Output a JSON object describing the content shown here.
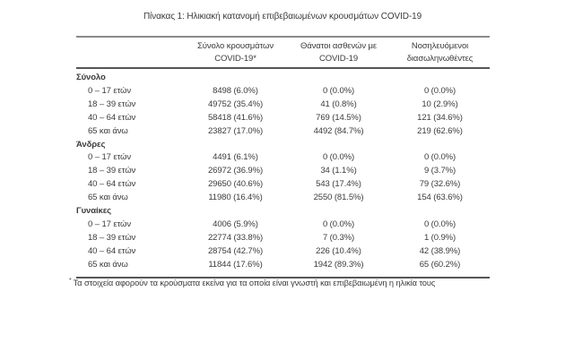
{
  "title": "Πίνακας 1: Ηλικιακή κατανομή επιβεβαιωμένων κρουσμάτων COVID-19",
  "table": {
    "header": {
      "cases": {
        "line1": "Σύνολο κρουσμάτων",
        "line2": "COVID-19*"
      },
      "deaths": {
        "line1": "Θάνατοι ασθενών με",
        "line2": "COVID-19"
      },
      "intubated": {
        "line1": "Νοσηλευόμενοι",
        "line2": "διασωληνωθέντες"
      }
    },
    "sections": [
      {
        "label": "Σύνολο",
        "rows": [
          {
            "label": "0 – 17 ετών",
            "cases": "8498 (6.0%)",
            "deaths": "0 (0.0%)",
            "intubated": "0 (0.0%)"
          },
          {
            "label": "18 – 39 ετών",
            "cases": "49752 (35.4%)",
            "deaths": "41 (0.8%)",
            "intubated": "10 (2.9%)"
          },
          {
            "label": "40 – 64 ετών",
            "cases": "58418 (41.6%)",
            "deaths": "769 (14.5%)",
            "intubated": "121 (34.6%)"
          },
          {
            "label": "65 και άνω",
            "cases": "23827 (17.0%)",
            "deaths": "4492 (84.7%)",
            "intubated": "219 (62.6%)"
          }
        ]
      },
      {
        "label": "Άνδρες",
        "rows": [
          {
            "label": "0 – 17 ετών",
            "cases": "4491 (6.1%)",
            "deaths": "0 (0.0%)",
            "intubated": "0 (0.0%)"
          },
          {
            "label": "18 – 39 ετών",
            "cases": "26972 (36.9%)",
            "deaths": "34 (1.1%)",
            "intubated": "9 (3.7%)"
          },
          {
            "label": "40 – 64 ετών",
            "cases": "29650 (40.6%)",
            "deaths": "543 (17.4%)",
            "intubated": "79 (32.6%)"
          },
          {
            "label": "65 και άνω",
            "cases": "11980 (16.4%)",
            "deaths": "2550 (81.5%)",
            "intubated": "154 (63.6%)"
          }
        ]
      },
      {
        "label": "Γυναίκες",
        "rows": [
          {
            "label": "0 – 17 ετών",
            "cases": "4006 (5.9%)",
            "deaths": "0 (0.0%)",
            "intubated": "0 (0.0%)"
          },
          {
            "label": "18 – 39 ετών",
            "cases": "22774 (33.8%)",
            "deaths": "7 (0.3%)",
            "intubated": "1 (0.9%)"
          },
          {
            "label": "40 – 64 ετών",
            "cases": "28754 (42.7%)",
            "deaths": "226 (10.4%)",
            "intubated": "42 (38.9%)"
          },
          {
            "label": "65 και άνω",
            "cases": "11844 (17.6%)",
            "deaths": "1942 (89.3%)",
            "intubated": "65 (60.2%)"
          }
        ]
      }
    ]
  },
  "footnote": {
    "marker": "*",
    "text": "Τα στοιχεία αφορούν τα κρούσματα εκείνα για τα οποία είναι γνωστή και επιβεβαιωμένη η ηλικία τους"
  },
  "colors": {
    "text": "#3b3b3b",
    "rule_top": "#8a8a8a",
    "rule_dark": "#565656",
    "background": "#ffffff"
  }
}
